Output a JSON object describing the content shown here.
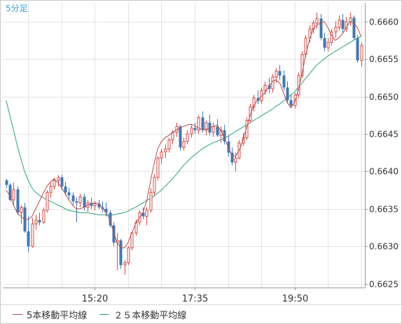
{
  "chart_data": {
    "type": "candlestick",
    "timeframe_label": "5分足",
    "x_ticks": [
      "15:20",
      "17:35",
      "19:50"
    ],
    "y_ticks": [
      "0.6660",
      "0.6655",
      "0.6650",
      "0.6645",
      "0.6640",
      "0.6635",
      "0.6630",
      "0.6625"
    ],
    "ylim": [
      0.66245,
      0.66625
    ],
    "grid": true,
    "colors": {
      "up": "#d44a45",
      "down": "#3f78b5",
      "ma5": "#b84a4a",
      "ma25": "#2aa37a",
      "label": "#3aa0d8"
    },
    "series": [
      {
        "name": "5本移動平均線",
        "values": [
          0.66375,
          0.66368,
          0.66355,
          0.66345,
          0.6634,
          0.66336,
          0.66336,
          0.6634,
          0.6635,
          0.6636,
          0.6637,
          0.6638,
          0.66386,
          0.6639,
          0.66385,
          0.66378,
          0.6637,
          0.66362,
          0.66355,
          0.6635,
          0.6635,
          0.66352,
          0.66355,
          0.66357,
          0.66358,
          0.66357,
          0.66352,
          0.66345,
          0.66337,
          0.6632,
          0.66305,
          0.66298,
          0.66298,
          0.66305,
          0.66318,
          0.6633,
          0.66338,
          0.66345,
          0.6636,
          0.66385,
          0.6641,
          0.6643,
          0.6644,
          0.66445,
          0.66448,
          0.66452,
          0.66455,
          0.66458,
          0.6646,
          0.66462,
          0.66463,
          0.66461,
          0.66458,
          0.66456,
          0.66456,
          0.66458,
          0.6646,
          0.66462,
          0.66455,
          0.66445,
          0.66433,
          0.66422,
          0.6642,
          0.66428,
          0.6644,
          0.66458,
          0.66475,
          0.66488,
          0.66495,
          0.665,
          0.66505,
          0.66512,
          0.6652,
          0.66522,
          0.66518,
          0.66505,
          0.66492,
          0.66485,
          0.66492,
          0.66508,
          0.6653,
          0.66555,
          0.66575,
          0.6659,
          0.66595,
          0.66598,
          0.666,
          0.66592,
          0.66582,
          0.66575,
          0.66578,
          0.66584,
          0.66592,
          0.666,
          0.66598,
          0.66592,
          0.6658,
          0.6657,
          0.66565
        ]
      },
      {
        "name": "２５本移動平均線",
        "values": [
          0.66495,
          0.66475,
          0.66455,
          0.66435,
          0.66417,
          0.664,
          0.66388,
          0.66378,
          0.66372,
          0.66368,
          0.66365,
          0.66362,
          0.6636,
          0.66358,
          0.66355,
          0.66353,
          0.6635,
          0.66348,
          0.66347,
          0.66346,
          0.66345,
          0.66345,
          0.66345,
          0.66344,
          0.66343,
          0.66342,
          0.66342,
          0.66342,
          0.66342,
          0.66342,
          0.66343,
          0.66344,
          0.66345,
          0.66347,
          0.6635,
          0.66352,
          0.66355,
          0.66358,
          0.66361,
          0.66364,
          0.66367,
          0.66371,
          0.66375,
          0.6638,
          0.66385,
          0.6639,
          0.66396,
          0.66402,
          0.66408,
          0.66413,
          0.66418,
          0.66422,
          0.66426,
          0.6643,
          0.66433,
          0.66436,
          0.66438,
          0.6644,
          0.66442,
          0.66444,
          0.66447,
          0.6645,
          0.66453,
          0.66456,
          0.66459,
          0.66462,
          0.66465,
          0.66468,
          0.66471,
          0.66474,
          0.66477,
          0.6648,
          0.66483,
          0.66487,
          0.6649,
          0.66494,
          0.66498,
          0.66502,
          0.66506,
          0.66512,
          0.66518,
          0.66524,
          0.6653,
          0.66536,
          0.66542,
          0.66546,
          0.6655,
          0.66554,
          0.66557,
          0.6656,
          0.66563,
          0.66566,
          0.66569,
          0.66572,
          0.66575,
          0.66578,
          0.6658,
          0.66582,
          0.66584
        ]
      }
    ],
    "candles": [
      [
        0.66388,
        0.6639,
        0.66378,
        0.66382
      ],
      [
        0.66382,
        0.66384,
        0.6636,
        0.66362
      ],
      [
        0.66362,
        0.66385,
        0.66355,
        0.66376
      ],
      [
        0.66376,
        0.6638,
        0.66342,
        0.66345
      ],
      [
        0.66345,
        0.66355,
        0.6633,
        0.66352
      ],
      [
        0.66352,
        0.66358,
        0.66318,
        0.6632
      ],
      [
        0.6632,
        0.6634,
        0.66292,
        0.663
      ],
      [
        0.663,
        0.66338,
        0.66298,
        0.6633
      ],
      [
        0.6633,
        0.66342,
        0.66322,
        0.66335
      ],
      [
        0.66335,
        0.66345,
        0.66328,
        0.66332
      ],
      [
        0.66332,
        0.66352,
        0.6633,
        0.66348
      ],
      [
        0.66348,
        0.66375,
        0.66345,
        0.66372
      ],
      [
        0.66372,
        0.66385,
        0.66365,
        0.6638
      ],
      [
        0.6638,
        0.66392,
        0.66376,
        0.66388
      ],
      [
        0.66388,
        0.66395,
        0.6638,
        0.66392
      ],
      [
        0.66392,
        0.66396,
        0.66375,
        0.6638
      ],
      [
        0.6638,
        0.66386,
        0.66368,
        0.66372
      ],
      [
        0.66372,
        0.66378,
        0.66362,
        0.66368
      ],
      [
        0.66368,
        0.66372,
        0.66355,
        0.6636
      ],
      [
        0.6636,
        0.66365,
        0.66332,
        0.66358
      ],
      [
        0.66358,
        0.6637,
        0.66352,
        0.66366
      ],
      [
        0.66366,
        0.6637,
        0.66348,
        0.66352
      ],
      [
        0.66352,
        0.66362,
        0.66346,
        0.66358
      ],
      [
        0.66358,
        0.66365,
        0.6635,
        0.66354
      ],
      [
        0.66354,
        0.6636,
        0.66348,
        0.66357
      ],
      [
        0.66357,
        0.66362,
        0.6635,
        0.66352
      ],
      [
        0.66352,
        0.6636,
        0.66345,
        0.6635
      ],
      [
        0.6635,
        0.66358,
        0.6634,
        0.66345
      ],
      [
        0.66345,
        0.66348,
        0.66325,
        0.66328
      ],
      [
        0.66328,
        0.66332,
        0.663,
        0.66305
      ],
      [
        0.66305,
        0.66318,
        0.66268,
        0.66308
      ],
      [
        0.66308,
        0.6631,
        0.6627,
        0.66275
      ],
      [
        0.66275,
        0.66282,
        0.66262,
        0.66278
      ],
      [
        0.66278,
        0.663,
        0.66275,
        0.66298
      ],
      [
        0.66298,
        0.6632,
        0.66295,
        0.66318
      ],
      [
        0.66318,
        0.66336,
        0.66314,
        0.66332
      ],
      [
        0.66332,
        0.66348,
        0.66328,
        0.66345
      ],
      [
        0.66345,
        0.66352,
        0.66336,
        0.6634
      ],
      [
        0.6634,
        0.66352,
        0.66328,
        0.66348
      ],
      [
        0.66348,
        0.66378,
        0.66345,
        0.66372
      ],
      [
        0.66372,
        0.66396,
        0.66368,
        0.66392
      ],
      [
        0.66392,
        0.6642,
        0.66388,
        0.66418
      ],
      [
        0.66418,
        0.6643,
        0.6641,
        0.66426
      ],
      [
        0.66426,
        0.66436,
        0.66418,
        0.6643
      ],
      [
        0.6643,
        0.66445,
        0.66425,
        0.66442
      ],
      [
        0.66442,
        0.66455,
        0.66436,
        0.66452
      ],
      [
        0.66452,
        0.66465,
        0.66446,
        0.6646
      ],
      [
        0.6646,
        0.66462,
        0.66428,
        0.66432
      ],
      [
        0.66432,
        0.66445,
        0.66428,
        0.6644
      ],
      [
        0.6644,
        0.66455,
        0.66436,
        0.6645
      ],
      [
        0.6645,
        0.66462,
        0.66445,
        0.66458
      ],
      [
        0.66458,
        0.66465,
        0.6645,
        0.66455
      ],
      [
        0.66455,
        0.66475,
        0.6645,
        0.66472
      ],
      [
        0.66472,
        0.6648,
        0.66452,
        0.66455
      ],
      [
        0.66455,
        0.66468,
        0.66448,
        0.66465
      ],
      [
        0.66465,
        0.66476,
        0.66448,
        0.66452
      ],
      [
        0.66452,
        0.66465,
        0.66446,
        0.6646
      ],
      [
        0.6646,
        0.6647,
        0.66446,
        0.66448
      ],
      [
        0.66448,
        0.6646,
        0.66438,
        0.66455
      ],
      [
        0.66455,
        0.66462,
        0.66436,
        0.6644
      ],
      [
        0.6644,
        0.66448,
        0.6642,
        0.66425
      ],
      [
        0.66425,
        0.66432,
        0.66408,
        0.66412
      ],
      [
        0.66412,
        0.66425,
        0.664,
        0.66418
      ],
      [
        0.66418,
        0.66442,
        0.66416,
        0.66438
      ],
      [
        0.66438,
        0.66452,
        0.66434,
        0.66445
      ],
      [
        0.66445,
        0.66472,
        0.66442,
        0.66468
      ],
      [
        0.66468,
        0.6649,
        0.66465,
        0.66486
      ],
      [
        0.66486,
        0.66502,
        0.6648,
        0.66498
      ],
      [
        0.66498,
        0.66508,
        0.6649,
        0.66494
      ],
      [
        0.66494,
        0.66512,
        0.6649,
        0.66508
      ],
      [
        0.66508,
        0.6652,
        0.66502,
        0.66515
      ],
      [
        0.66515,
        0.66525,
        0.66505,
        0.6651
      ],
      [
        0.6651,
        0.6653,
        0.66505,
        0.66526
      ],
      [
        0.66526,
        0.66538,
        0.66518,
        0.66534
      ],
      [
        0.66534,
        0.66542,
        0.66522,
        0.66528
      ],
      [
        0.66528,
        0.66535,
        0.66508,
        0.66512
      ],
      [
        0.66512,
        0.6652,
        0.66492,
        0.66495
      ],
      [
        0.66495,
        0.66502,
        0.66484,
        0.66488
      ],
      [
        0.66488,
        0.66505,
        0.66484,
        0.66502
      ],
      [
        0.66502,
        0.66532,
        0.66498,
        0.66528
      ],
      [
        0.66528,
        0.6656,
        0.66525,
        0.66556
      ],
      [
        0.66556,
        0.66582,
        0.66552,
        0.66578
      ],
      [
        0.66578,
        0.66595,
        0.66572,
        0.6659
      ],
      [
        0.6659,
        0.66602,
        0.66584,
        0.66598
      ],
      [
        0.66598,
        0.66612,
        0.6659,
        0.66604
      ],
      [
        0.66604,
        0.6661,
        0.66575,
        0.66578
      ],
      [
        0.66578,
        0.66585,
        0.6656,
        0.66565
      ],
      [
        0.66565,
        0.66578,
        0.6656,
        0.66572
      ],
      [
        0.66572,
        0.6659,
        0.66568,
        0.66586
      ],
      [
        0.66586,
        0.666,
        0.66578,
        0.66592
      ],
      [
        0.66592,
        0.66608,
        0.66588,
        0.66602
      ],
      [
        0.66602,
        0.6661,
        0.66585,
        0.6659
      ],
      [
        0.6659,
        0.66606,
        0.66586,
        0.666
      ],
      [
        0.666,
        0.66612,
        0.66594,
        0.66605
      ],
      [
        0.66605,
        0.66608,
        0.66575,
        0.66578
      ],
      [
        0.66578,
        0.66582,
        0.66545,
        0.66548
      ],
      [
        0.66548,
        0.66572,
        0.6654,
        0.66568
      ],
      [
        0.66568,
        0.66585,
        0.6654,
        0.66545
      ],
      [
        0.66545,
        0.6656,
        0.66538,
        0.66555
      ]
    ]
  }
}
